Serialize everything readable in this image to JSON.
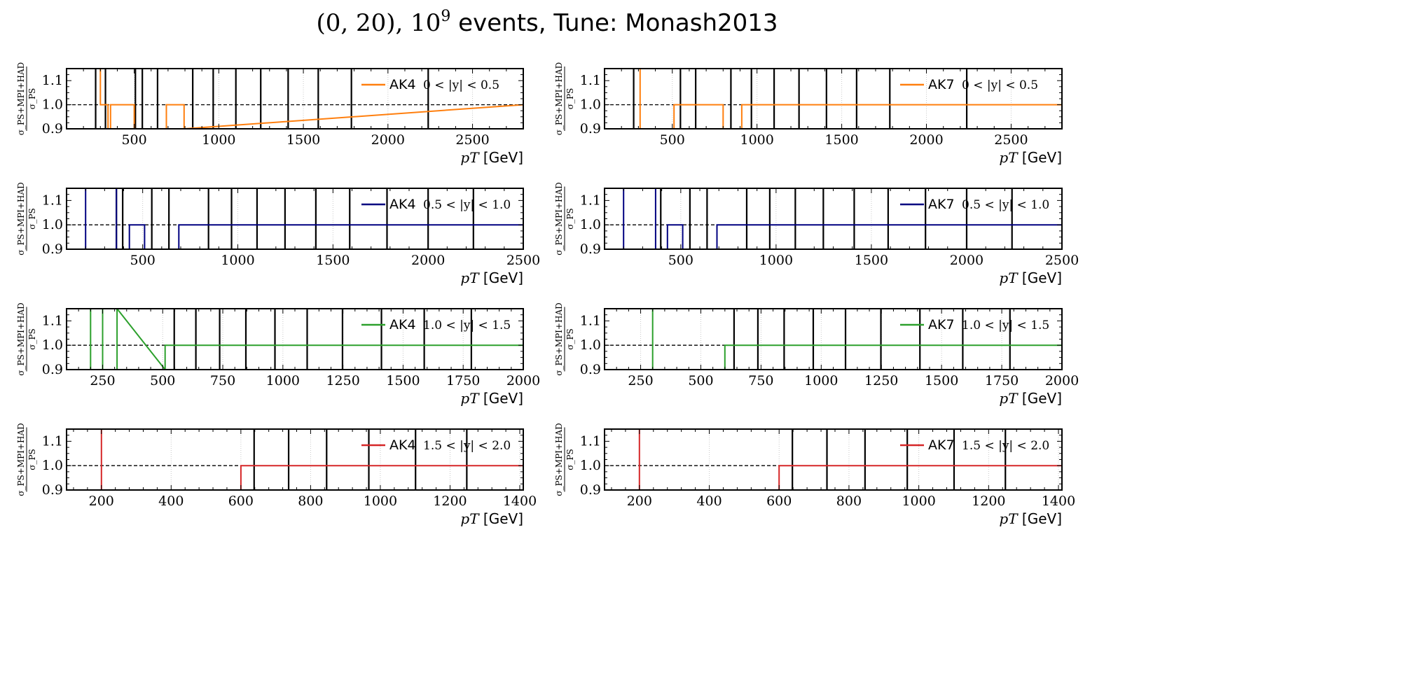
{
  "figure": {
    "title_math": "(0, 20), 10",
    "title_sup": "9",
    "title_text": " events, Tune: Monash2013"
  },
  "colors": {
    "orange": "#ff7f0e",
    "navy": "#000080",
    "green": "#2ca02c",
    "red": "#d62728",
    "black": "#000000",
    "grid": "#c8c8c8"
  },
  "chart_data": [
    {
      "type": "line",
      "algorithm": "AK4",
      "rapidity": "0 < |y| < 0.5",
      "color": "orange",
      "xlabel": "p_T [GeV]",
      "ylabel": "σ_PS+MPI+HAD / σ_PS",
      "xlim": [
        100,
        2800
      ],
      "ylim": [
        0.9,
        1.15
      ],
      "xticks": [
        500,
        1000,
        1500,
        2000,
        2500
      ],
      "yticks": [
        0.9,
        1.0,
        1.1
      ],
      "reference": 1.0,
      "bin_edges": [
        272,
        330,
        507,
        548,
        638,
        846,
        967,
        1101,
        1248,
        1410,
        1588,
        1784,
        2238
      ],
      "series": [
        {
          "x": [
            300,
            300,
            345,
            345,
            360,
            360,
            500,
            500,
            690,
            690,
            795,
            795,
            2800
          ],
          "y": [
            1.15,
            1.0,
            1.0,
            0.9,
            0.9,
            1.0,
            1.0,
            0.9,
            0.9,
            1.0,
            1.0,
            0.9,
            1.0
          ]
        }
      ]
    },
    {
      "type": "line",
      "algorithm": "AK7",
      "rapidity": "0 < |y| < 0.5",
      "color": "orange",
      "xlabel": "p_T [GeV]",
      "ylabel": "σ_PS+MPI+HAD / σ_PS",
      "xlim": [
        100,
        2800
      ],
      "ylim": [
        0.9,
        1.15
      ],
      "xticks": [
        500,
        1000,
        1500,
        2000,
        2500
      ],
      "yticks": [
        0.9,
        1.0,
        1.1
      ],
      "reference": 1.0,
      "bin_edges": [
        272,
        548,
        638,
        846,
        967,
        1101,
        1248,
        1410,
        1588,
        1784,
        2238
      ],
      "series": [
        {
          "x": [
            310,
            310,
            510,
            510,
            800,
            800,
            910,
            910,
            2800
          ],
          "y": [
            1.15,
            0.9,
            0.9,
            1.0,
            1.0,
            0.9,
            0.9,
            1.0,
            1.0
          ]
        }
      ]
    },
    {
      "type": "line",
      "algorithm": "AK4",
      "rapidity": "0.5 < |y| < 1.0",
      "color": "navy",
      "xlabel": "p_T [GeV]",
      "ylabel": "σ_PS+MPI+HAD / σ_PS",
      "xlim": [
        100,
        2500
      ],
      "ylim": [
        0.9,
        1.15
      ],
      "xticks": [
        500,
        1000,
        1500,
        2000,
        2500
      ],
      "yticks": [
        0.9,
        1.0,
        1.1
      ],
      "reference": 1.0,
      "bin_edges": [
        362,
        395,
        548,
        638,
        846,
        967,
        1101,
        1248,
        1410,
        1588,
        1784,
        2000,
        2238
      ],
      "series": [
        {
          "x": [
            200,
            200,
            362,
            362,
            430,
            430,
            510,
            510,
            690,
            690,
            800,
            800,
            2500
          ],
          "y": [
            0.9,
            1.15,
            1.15,
            0.9,
            0.9,
            1.0,
            1.0,
            0.9,
            0.9,
            1.0,
            1.0,
            1.0,
            1.0
          ]
        }
      ]
    },
    {
      "type": "line",
      "algorithm": "AK7",
      "rapidity": "0.5 < |y| < 1.0",
      "color": "navy",
      "xlabel": "p_T [GeV]",
      "ylabel": "σ_PS+MPI+HAD / σ_PS",
      "xlim": [
        100,
        2500
      ],
      "ylim": [
        0.9,
        1.15
      ],
      "xticks": [
        500,
        1000,
        1500,
        2000,
        2500
      ],
      "yticks": [
        0.9,
        1.0,
        1.1
      ],
      "reference": 1.0,
      "bin_edges": [
        395,
        548,
        638,
        846,
        967,
        1101,
        1248,
        1410,
        1588,
        1784,
        2000,
        2238
      ],
      "series": [
        {
          "x": [
            200,
            200,
            368,
            368,
            430,
            430,
            510,
            510,
            690,
            690,
            800,
            800,
            2500
          ],
          "y": [
            0.9,
            1.15,
            1.15,
            0.9,
            0.9,
            1.0,
            1.0,
            0.9,
            0.9,
            1.0,
            1.0,
            1.0,
            1.0
          ]
        }
      ]
    },
    {
      "type": "line",
      "algorithm": "AK4",
      "rapidity": "1.0 < |y| < 1.5",
      "color": "green",
      "xlabel": "p_T [GeV]",
      "ylabel": "σ_PS+MPI+HAD / σ_PS",
      "xlim": [
        100,
        2000
      ],
      "ylim": [
        0.9,
        1.15
      ],
      "xticks": [
        250,
        500,
        750,
        1000,
        1250,
        1500,
        1750,
        2000
      ],
      "yticks": [
        0.9,
        1.0,
        1.1
      ],
      "reference": 1.0,
      "bin_edges": [
        548,
        638,
        737,
        846,
        967,
        1101,
        1248,
        1410,
        1588,
        1784
      ],
      "series": [
        {
          "x": [
            200,
            200,
            250,
            250,
            310,
            310,
            510,
            510,
            2000
          ],
          "y": [
            0.9,
            1.15,
            1.15,
            0.9,
            0.9,
            1.15,
            0.9,
            1.0,
            1.0
          ]
        }
      ]
    },
    {
      "type": "line",
      "algorithm": "AK7",
      "rapidity": "1.0 < |y| < 1.5",
      "color": "green",
      "xlabel": "p_T [GeV]",
      "ylabel": "σ_PS+MPI+HAD / σ_PS",
      "xlim": [
        100,
        2000
      ],
      "ylim": [
        0.9,
        1.15
      ],
      "xticks": [
        250,
        500,
        750,
        1000,
        1250,
        1500,
        1750,
        2000
      ],
      "yticks": [
        0.9,
        1.0,
        1.1
      ],
      "reference": 1.0,
      "bin_edges": [
        638,
        737,
        846,
        967,
        1101,
        1248,
        1410,
        1588,
        1784
      ],
      "series": [
        {
          "x": [
            300,
            300,
            600,
            600,
            2000
          ],
          "y": [
            1.15,
            0.9,
            0.9,
            1.0,
            1.0
          ]
        }
      ]
    },
    {
      "type": "line",
      "algorithm": "AK4",
      "rapidity": "1.5 < |y| < 2.0",
      "color": "red",
      "xlabel": "p_T [GeV]",
      "ylabel": "σ_PS+MPI+HAD / σ_PS",
      "xlim": [
        100,
        1410
      ],
      "ylim": [
        0.9,
        1.15
      ],
      "xticks": [
        200,
        400,
        600,
        800,
        1000,
        1200,
        1400
      ],
      "yticks": [
        0.9,
        1.0,
        1.1
      ],
      "reference": 1.0,
      "bin_edges": [
        638,
        737,
        846,
        967,
        1101,
        1248
      ],
      "series": [
        {
          "x": [
            200,
            200,
            600,
            600,
            1410
          ],
          "y": [
            1.15,
            0.9,
            0.9,
            1.0,
            1.0
          ]
        }
      ]
    },
    {
      "type": "line",
      "algorithm": "AK7",
      "rapidity": "1.5 < |y| < 2.0",
      "color": "red",
      "xlabel": "p_T [GeV]",
      "ylabel": "σ_PS+MPI+HAD / σ_PS",
      "xlim": [
        100,
        1410
      ],
      "ylim": [
        0.9,
        1.15
      ],
      "xticks": [
        200,
        400,
        600,
        800,
        1000,
        1200,
        1400
      ],
      "yticks": [
        0.9,
        1.0,
        1.1
      ],
      "reference": 1.0,
      "bin_edges": [
        638,
        737,
        846,
        967,
        1101,
        1248
      ],
      "series": [
        {
          "x": [
            200,
            200,
            600,
            600,
            1410
          ],
          "y": [
            1.15,
            0.9,
            0.9,
            1.0,
            1.0
          ]
        }
      ]
    }
  ]
}
